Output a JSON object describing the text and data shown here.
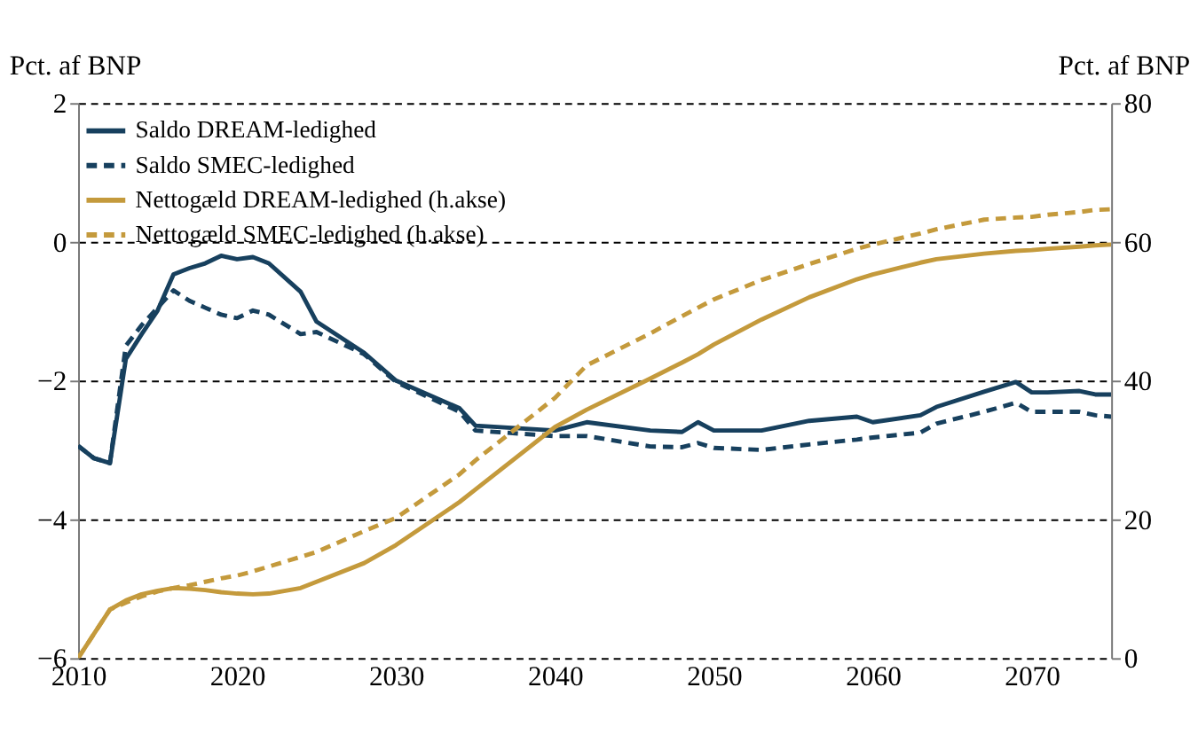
{
  "chart_data": {
    "type": "line",
    "ylabel": "Pct. af BNP",
    "y2label": "Pct. af BNP",
    "x": [
      2010,
      2011,
      2012,
      2013,
      2014,
      2015,
      2016,
      2017,
      2018,
      2019,
      2020,
      2021,
      2022,
      2024,
      2025,
      2028,
      2030,
      2034,
      2035,
      2040,
      2042,
      2046,
      2048,
      2049,
      2050,
      2053,
      2056,
      2059,
      2060,
      2063,
      2064,
      2067,
      2069,
      2070,
      2071,
      2073,
      2074,
      2075
    ],
    "xlim": [
      2010,
      2075
    ],
    "xticks": [
      2010,
      2020,
      2030,
      2040,
      2050,
      2060,
      2070
    ],
    "ylim": [
      -6,
      2
    ],
    "yticks": [
      -6,
      -4,
      -2,
      0,
      2
    ],
    "y2lim": [
      0,
      80
    ],
    "y2ticks": [
      0,
      20,
      40,
      60,
      80
    ],
    "grid": "y",
    "legend": "top left",
    "series": [
      {
        "name": "Saldo DREAM-ledighed",
        "color": "#17405e",
        "line_style": "solid",
        "axis": "y",
        "values": [
          -2.94,
          -3.12,
          -3.19,
          -1.69,
          -1.33,
          -0.99,
          -0.47,
          -0.38,
          -0.31,
          -0.2,
          -0.25,
          -0.22,
          -0.31,
          -0.72,
          -1.15,
          -1.6,
          -2.0,
          -2.4,
          -2.65,
          -2.72,
          -2.6,
          -2.72,
          -2.74,
          -2.6,
          -2.72,
          -2.72,
          -2.58,
          -2.52,
          -2.6,
          -2.5,
          -2.38,
          -2.16,
          -2.02,
          -2.17,
          -2.17,
          -2.15,
          -2.2,
          -2.2
        ]
      },
      {
        "name": "Saldo SMEC-ledighed",
        "color": "#17405e",
        "line_style": "dashed",
        "axis": "y",
        "values": [
          -2.94,
          -3.12,
          -3.19,
          -1.5,
          -1.2,
          -0.95,
          -0.7,
          -0.85,
          -0.95,
          -1.05,
          -1.1,
          -0.99,
          -1.05,
          -1.33,
          -1.3,
          -1.62,
          -2.02,
          -2.45,
          -2.72,
          -2.8,
          -2.8,
          -2.95,
          -2.96,
          -2.9,
          -2.97,
          -3.0,
          -2.92,
          -2.85,
          -2.82,
          -2.75,
          -2.62,
          -2.45,
          -2.32,
          -2.45,
          -2.45,
          -2.45,
          -2.5,
          -2.52
        ]
      },
      {
        "name": "Nettogæld DREAM-ledighed (h.akse)",
        "color": "#c49a3c",
        "line_style": "solid",
        "axis": "y2",
        "values": [
          0,
          3.5,
          7.0,
          8.3,
          9.2,
          9.7,
          10.1,
          10.0,
          9.8,
          9.5,
          9.3,
          9.2,
          9.3,
          10.1,
          11.0,
          13.7,
          16.3,
          22.5,
          24.3,
          33.3,
          35.8,
          40.3,
          42.6,
          43.8,
          45.2,
          48.8,
          52.0,
          54.6,
          55.3,
          57.0,
          57.5,
          58.3,
          58.7,
          58.8,
          59.0,
          59.3,
          59.5,
          59.6
        ]
      },
      {
        "name": "Nettogæld SMEC-ledighed (h.akse)",
        "color": "#c49a3c",
        "line_style": "dashed",
        "axis": "y2",
        "values": [
          0,
          3.5,
          7.0,
          8.0,
          8.9,
          9.6,
          10.1,
          10.5,
          11.0,
          11.5,
          11.9,
          12.5,
          13.2,
          14.6,
          15.3,
          18.3,
          20.2,
          26.5,
          28.5,
          37.5,
          42.2,
          46.8,
          49.3,
          50.5,
          51.7,
          54.5,
          56.8,
          59.0,
          59.6,
          61.2,
          61.8,
          63.2,
          63.5,
          63.6,
          63.9,
          64.3,
          64.6,
          64.7
        ]
      }
    ]
  }
}
